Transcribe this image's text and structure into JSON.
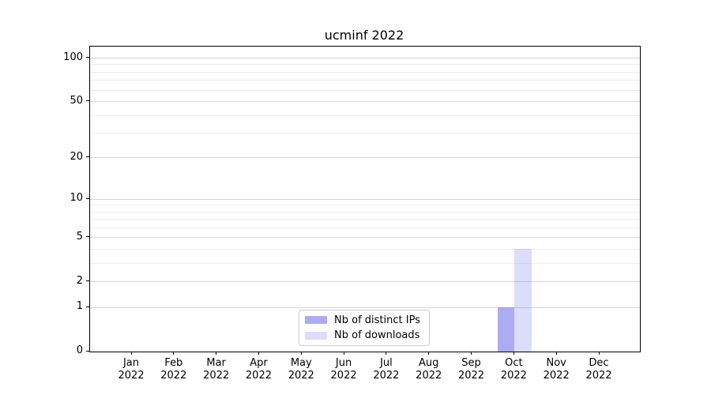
{
  "chart_data": {
    "type": "bar",
    "title": "ucminf 2022",
    "year": "2022",
    "categories": [
      "Jan",
      "Feb",
      "Mar",
      "Apr",
      "May",
      "Jun",
      "Jul",
      "Aug",
      "Sep",
      "Oct",
      "Nov",
      "Dec"
    ],
    "series": [
      {
        "name": "Nb of distinct IPs",
        "color": "rgba(116,116,238,0.60)",
        "values": [
          0,
          0,
          0,
          0,
          0,
          0,
          0,
          0,
          0,
          1,
          0,
          0
        ]
      },
      {
        "name": "Nb of downloads",
        "color": "rgba(116,116,238,0.25)",
        "values": [
          0,
          0,
          0,
          0,
          0,
          0,
          0,
          0,
          0,
          4,
          0,
          0
        ]
      }
    ],
    "y_axis": {
      "scale": "log1p",
      "ticks": [
        0,
        1,
        2,
        5,
        10,
        20,
        50,
        100
      ],
      "minor_ticks": [
        3,
        4,
        6,
        7,
        8,
        9,
        30,
        40,
        60,
        70,
        80,
        90
      ],
      "ylim": [
        0,
        120
      ]
    },
    "x_axis": {
      "label_line2": "2022"
    },
    "grid": {
      "major_color": "#d4d4d4",
      "minor_color": "#ececec"
    },
    "legend": {
      "position": "lower-center"
    },
    "colors": {
      "bar_distinct_ips": "rgba(116,116,238,0.60)",
      "bar_downloads": "rgba(116,116,238,0.25)",
      "spine": "#000000",
      "background": "#ffffff"
    }
  }
}
